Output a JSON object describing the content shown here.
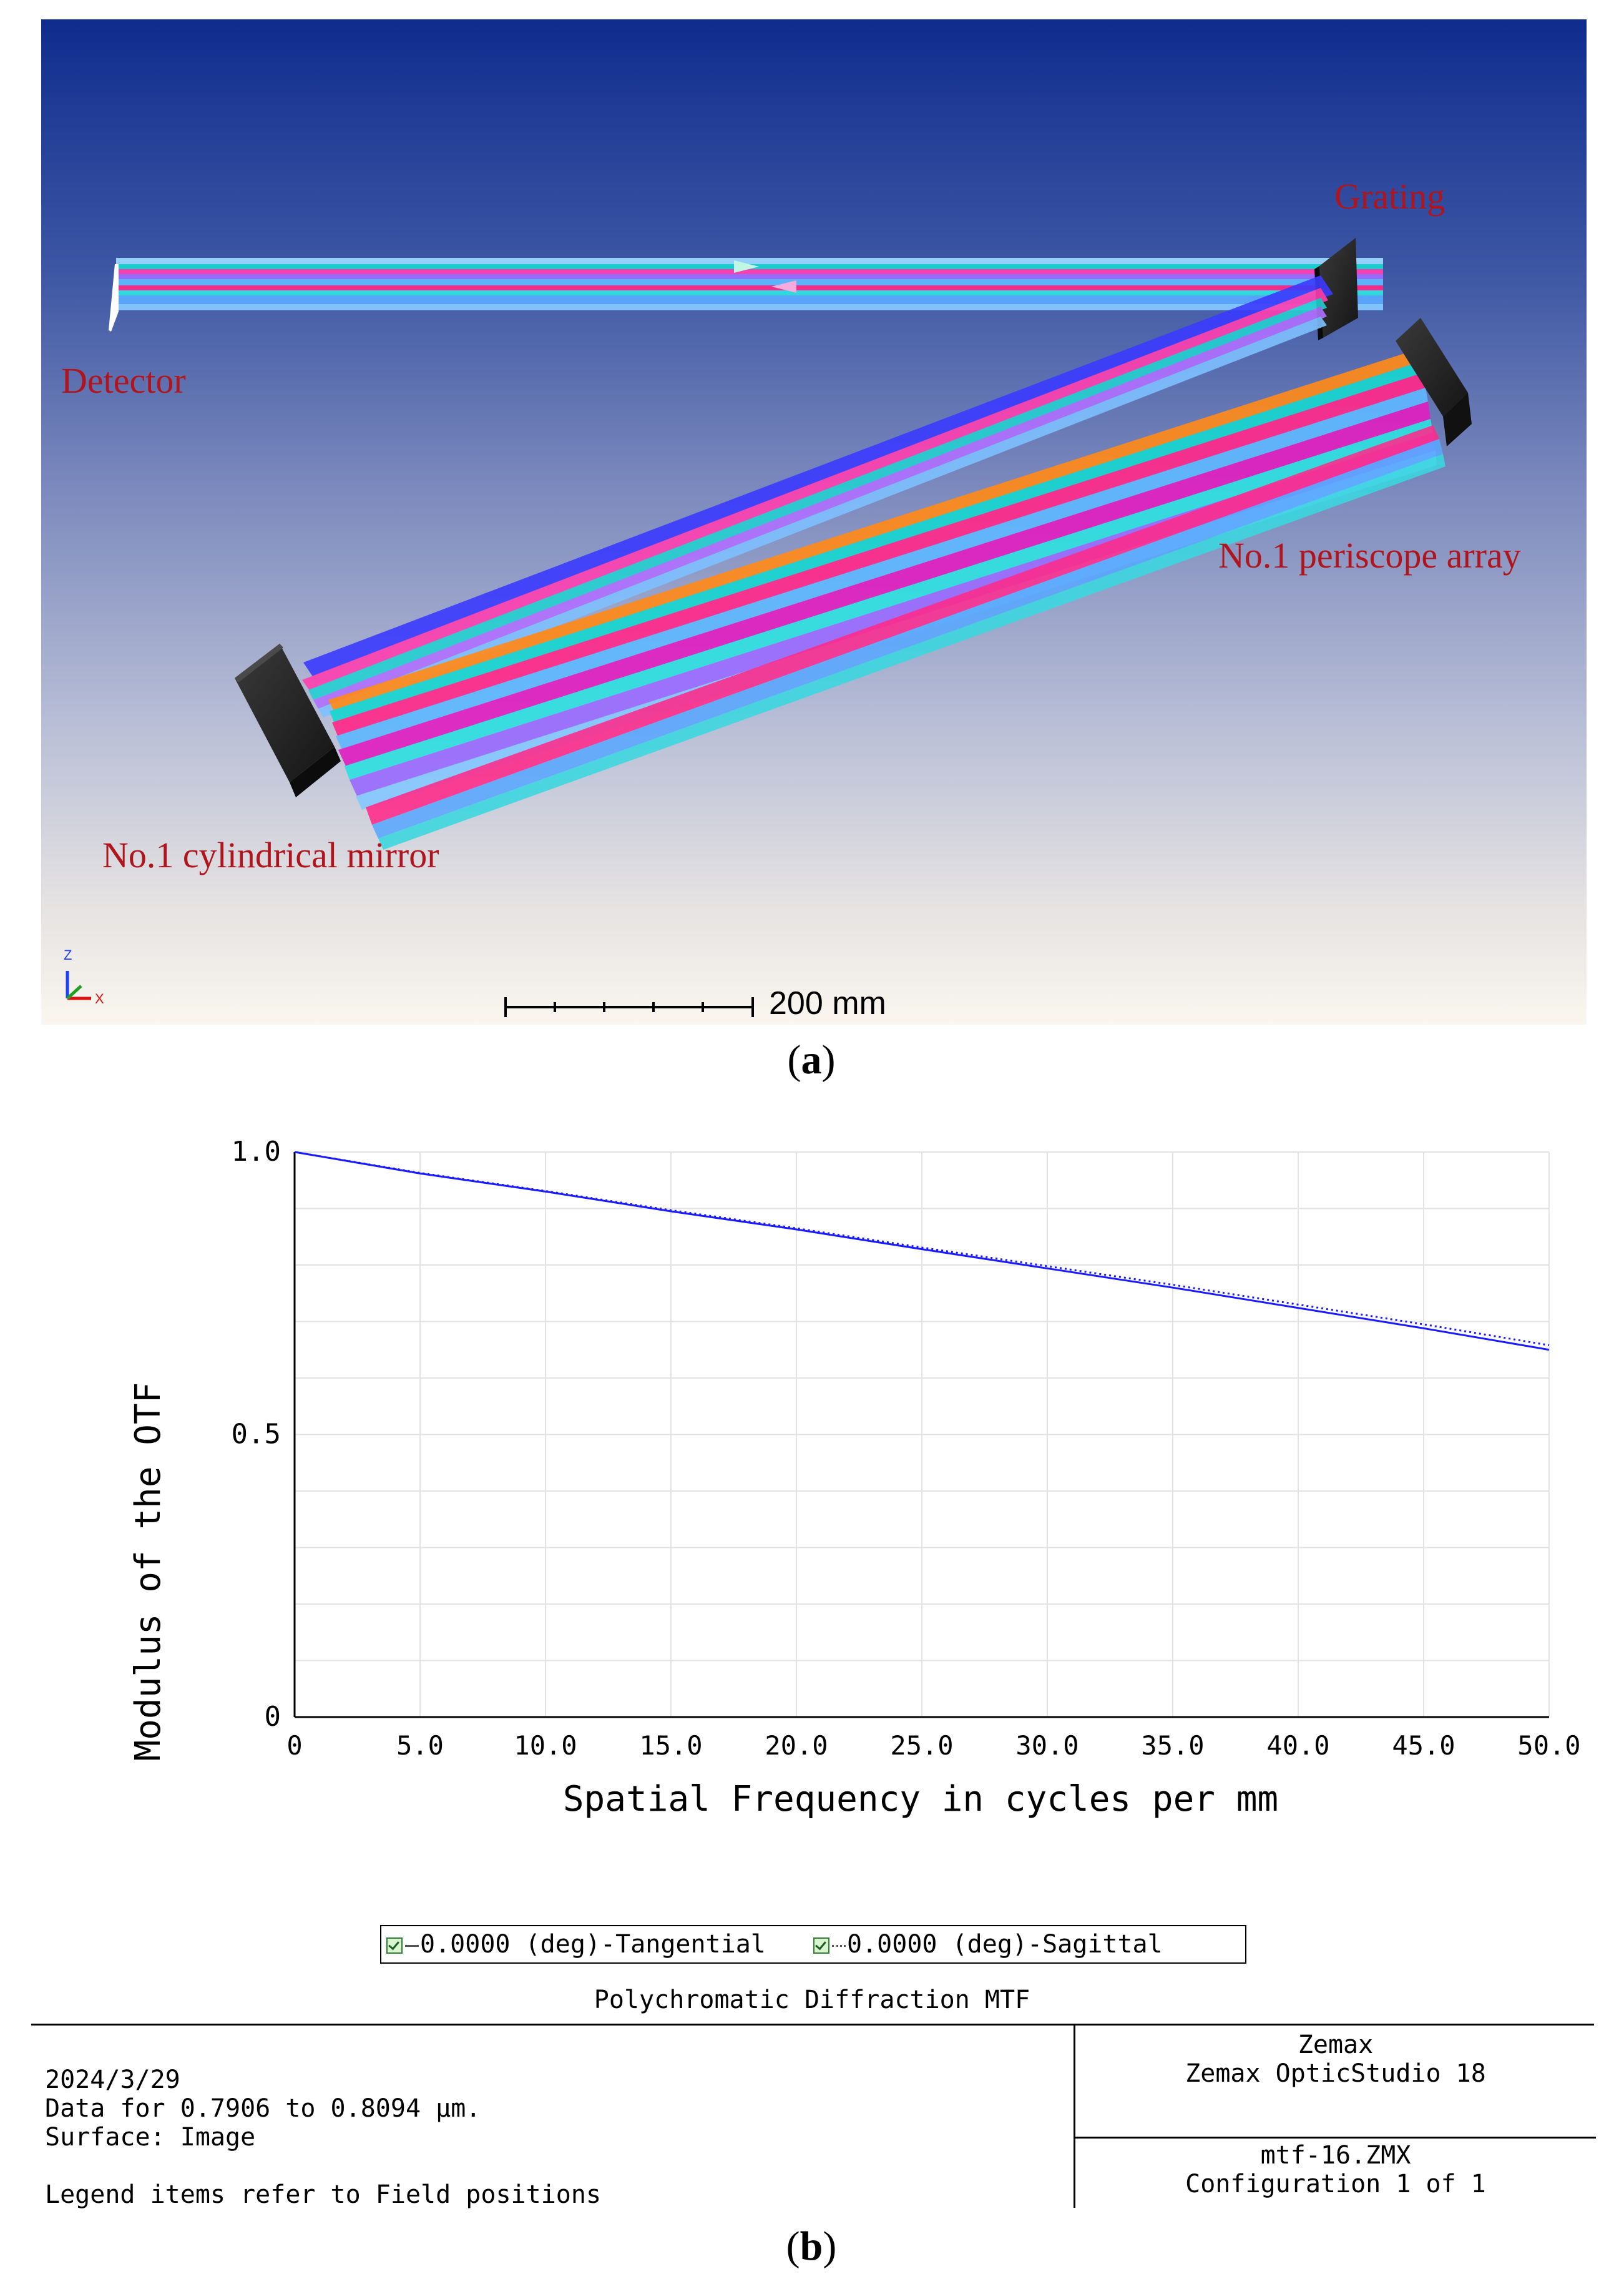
{
  "panel_a": {
    "labels": {
      "grating": "Grating",
      "detector": "Detector",
      "periscope": "No.1 periscope array",
      "cylindrical_mirror": "No.1 cylindrical mirror"
    },
    "scale_bar": "200 mm",
    "axis_z": "Z",
    "axis_x": "X",
    "caption": "a"
  },
  "panel_b": {
    "caption": "b",
    "legend": {
      "tangential": "0.0000 (deg)-Tangential",
      "sagittal": "0.0000 (deg)-Sagittal"
    },
    "plot_title": "Polychromatic Diffraction MTF",
    "footer": {
      "date": "2024/3/29",
      "data_range": "Data for 0.7906 to 0.8094 µm.",
      "surface": "Surface: Image",
      "legend_note": "Legend items refer to Field positions",
      "company": "Zemax",
      "product": "Zemax OpticStudio 18",
      "file": "mtf-16.ZMX",
      "configuration": "Configuration 1 of 1"
    }
  },
  "chart_data": {
    "type": "line",
    "title": "Polychromatic Diffraction MTF",
    "xlabel": "Spatial Frequency in cycles per mm",
    "ylabel": "Modulus of the OTF",
    "xlim": [
      0,
      50
    ],
    "ylim": [
      0,
      1
    ],
    "x_ticks": [
      "0",
      "5.0",
      "10.0",
      "15.0",
      "20.0",
      "25.0",
      "30.0",
      "35.0",
      "40.0",
      "45.0",
      "50.0"
    ],
    "y_ticks": [
      "0",
      "0.5",
      "1.0"
    ],
    "grid": true,
    "series": [
      {
        "name": "0.0000 (deg)-Tangential",
        "color": "#1a1aff",
        "style": "solid",
        "x": [
          0,
          5,
          10,
          15,
          20,
          25,
          30,
          35,
          40,
          45,
          50
        ],
        "values": [
          1.0,
          0.962,
          0.93,
          0.895,
          0.863,
          0.828,
          0.794,
          0.76,
          0.724,
          0.688,
          0.65
        ]
      },
      {
        "name": "0.0000 (deg)-Sagittal",
        "color": "#1a1aff",
        "style": "dotted",
        "x": [
          0,
          5,
          10,
          15,
          20,
          25,
          30,
          35,
          40,
          45,
          50
        ],
        "values": [
          1.0,
          0.963,
          0.931,
          0.897,
          0.865,
          0.831,
          0.798,
          0.765,
          0.73,
          0.695,
          0.658
        ]
      }
    ]
  }
}
